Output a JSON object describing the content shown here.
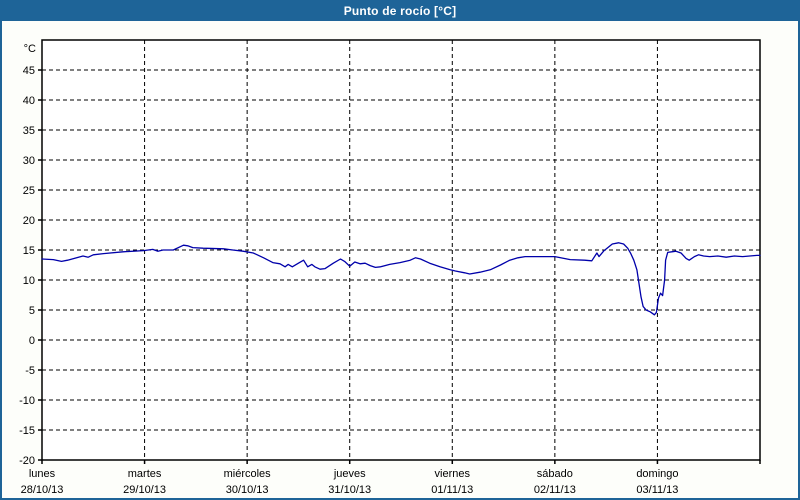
{
  "window": {
    "title": "Punto de rocío [°C]"
  },
  "colors": {
    "frame_blue": "#1e6498",
    "title_text": "#ffffff",
    "canvas_bg": "#fdfefa",
    "plot_bg": "#ffffff",
    "grid": "#000000",
    "axis": "#000000",
    "line": "#0000aa"
  },
  "chart_data": {
    "type": "line",
    "title": "Punto de rocío [°C]",
    "xlabel": "",
    "ylabel": "°C",
    "ylim": [
      -20,
      50
    ],
    "yticks": [
      45,
      40,
      35,
      30,
      25,
      20,
      15,
      10,
      5,
      0,
      -5,
      -10,
      -15,
      -20
    ],
    "grid": "dashed black horizontal at each ytick and vertical at each day boundary",
    "legend_position": "none",
    "x_axis": {
      "unit": "day",
      "days": [
        {
          "name": "lunes",
          "date": "28/10/13"
        },
        {
          "name": "martes",
          "date": "29/10/13"
        },
        {
          "name": "miércoles",
          "date": "30/10/13"
        },
        {
          "name": "jueves",
          "date": "31/10/13"
        },
        {
          "name": "viernes",
          "date": "01/11/13"
        },
        {
          "name": "sábado",
          "date": "02/11/13"
        },
        {
          "name": "domingo",
          "date": "03/11/13"
        }
      ]
    },
    "series": [
      {
        "name": "Punto de rocío [°C]",
        "color": "#0000aa",
        "points": [
          [
            0.0,
            13.5
          ],
          [
            0.11,
            13.4
          ],
          [
            0.19,
            13.1
          ],
          [
            0.25,
            13.3
          ],
          [
            0.4,
            14.0
          ],
          [
            0.45,
            13.8
          ],
          [
            0.5,
            14.2
          ],
          [
            0.6,
            14.4
          ],
          [
            0.79,
            14.7
          ],
          [
            0.99,
            14.9
          ],
          [
            1.08,
            15.1
          ],
          [
            1.13,
            14.8
          ],
          [
            1.18,
            15.0
          ],
          [
            1.28,
            15.0
          ],
          [
            1.38,
            15.8
          ],
          [
            1.42,
            15.7
          ],
          [
            1.47,
            15.4
          ],
          [
            1.57,
            15.3
          ],
          [
            1.77,
            15.2
          ],
          [
            1.86,
            15.0
          ],
          [
            1.96,
            14.8
          ],
          [
            2.06,
            14.5
          ],
          [
            2.16,
            13.7
          ],
          [
            2.25,
            12.9
          ],
          [
            2.32,
            12.7
          ],
          [
            2.37,
            12.2
          ],
          [
            2.4,
            12.6
          ],
          [
            2.44,
            12.2
          ],
          [
            2.5,
            12.8
          ],
          [
            2.55,
            13.3
          ],
          [
            2.59,
            12.2
          ],
          [
            2.63,
            12.6
          ],
          [
            2.66,
            12.2
          ],
          [
            2.71,
            11.8
          ],
          [
            2.76,
            11.9
          ],
          [
            2.84,
            12.8
          ],
          [
            2.91,
            13.5
          ],
          [
            2.95,
            13.1
          ],
          [
            3.0,
            12.3
          ],
          [
            3.05,
            13.0
          ],
          [
            3.1,
            12.7
          ],
          [
            3.15,
            12.8
          ],
          [
            3.2,
            12.4
          ],
          [
            3.25,
            12.1
          ],
          [
            3.3,
            12.2
          ],
          [
            3.39,
            12.6
          ],
          [
            3.49,
            12.9
          ],
          [
            3.59,
            13.3
          ],
          [
            3.64,
            13.7
          ],
          [
            3.69,
            13.5
          ],
          [
            3.78,
            12.8
          ],
          [
            3.88,
            12.2
          ],
          [
            3.98,
            11.7
          ],
          [
            4.03,
            11.5
          ],
          [
            4.12,
            11.2
          ],
          [
            4.17,
            11.0
          ],
          [
            4.27,
            11.3
          ],
          [
            4.37,
            11.7
          ],
          [
            4.47,
            12.5
          ],
          [
            4.56,
            13.3
          ],
          [
            4.64,
            13.7
          ],
          [
            4.71,
            13.9
          ],
          [
            4.81,
            13.9
          ],
          [
            5.0,
            13.9
          ],
          [
            5.15,
            13.4
          ],
          [
            5.29,
            13.3
          ],
          [
            5.36,
            13.2
          ],
          [
            5.41,
            14.5
          ],
          [
            5.43,
            13.9
          ],
          [
            5.48,
            14.9
          ],
          [
            5.56,
            16.0
          ],
          [
            5.62,
            16.2
          ],
          [
            5.67,
            16.0
          ],
          [
            5.71,
            15.3
          ],
          [
            5.74,
            14.4
          ],
          [
            5.77,
            13.3
          ],
          [
            5.8,
            11.7
          ],
          [
            5.82,
            9.4
          ],
          [
            5.84,
            7.2
          ],
          [
            5.86,
            5.6
          ],
          [
            5.89,
            5.0
          ],
          [
            5.93,
            4.7
          ],
          [
            5.97,
            4.2
          ],
          [
            5.99,
            4.6
          ],
          [
            6.01,
            7.0
          ],
          [
            6.03,
            7.8
          ],
          [
            6.05,
            7.4
          ],
          [
            6.07,
            10.0
          ],
          [
            6.08,
            13.3
          ],
          [
            6.1,
            14.6
          ],
          [
            6.14,
            14.7
          ],
          [
            6.18,
            14.8
          ],
          [
            6.23,
            14.5
          ],
          [
            6.28,
            13.6
          ],
          [
            6.31,
            13.3
          ],
          [
            6.36,
            13.9
          ],
          [
            6.4,
            14.2
          ],
          [
            6.45,
            14.0
          ],
          [
            6.51,
            13.9
          ],
          [
            6.59,
            14.0
          ],
          [
            6.67,
            13.8
          ],
          [
            6.75,
            14.0
          ],
          [
            6.83,
            13.9
          ],
          [
            6.9,
            14.0
          ],
          [
            6.97,
            14.1
          ],
          [
            7.0,
            14.1
          ]
        ]
      }
    ]
  }
}
